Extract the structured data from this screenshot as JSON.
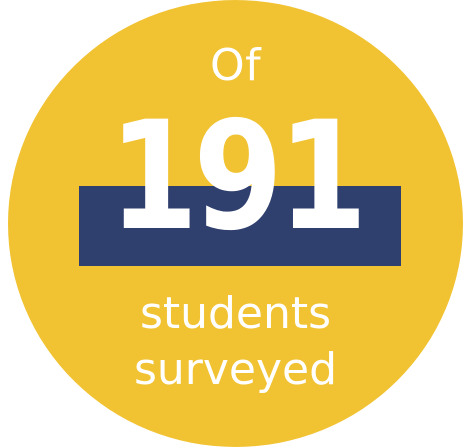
{
  "stat": {
    "prefix": "Of",
    "number": "191",
    "suffix_line1": "students",
    "suffix_line2": "surveyed"
  },
  "colors": {
    "circle": "#f1c232",
    "band": "#2f3f6e",
    "text": "#ffffff"
  }
}
